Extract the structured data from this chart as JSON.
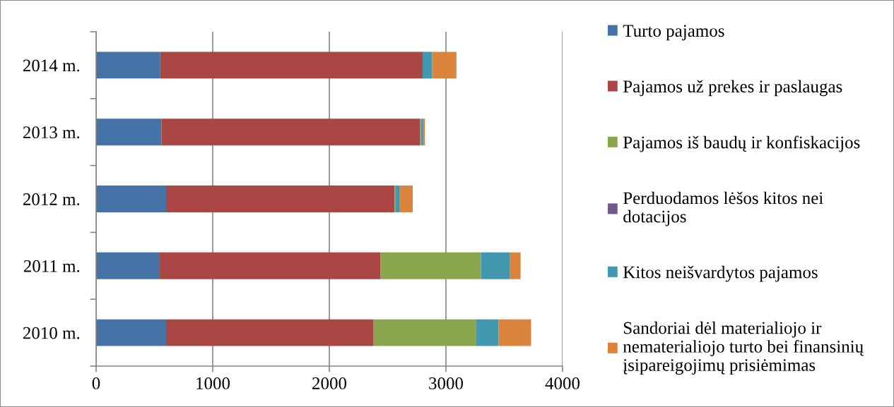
{
  "chart_data": {
    "type": "bar",
    "orientation": "horizontal",
    "stacked": true,
    "categories": [
      "2014 m.",
      "2013 m.",
      "2012 m.",
      "2011 m.",
      "2010 m."
    ],
    "series": [
      {
        "name": "Turto pajamos",
        "color": "#4572a7",
        "values": [
          550,
          560,
          600,
          540,
          600
        ]
      },
      {
        "name": "Pajamos už prekes ir paslaugas",
        "color": "#aa4643",
        "values": [
          2250,
          2220,
          1960,
          1900,
          1780
        ]
      },
      {
        "name": "Pajamos iš baudų ir konfiskacijos",
        "color": "#89a54e",
        "values": [
          0,
          5,
          10,
          860,
          880
        ]
      },
      {
        "name": "Perduodamos lėšos kitos nei\ndotacijos",
        "color": "#71588f",
        "values": [
          0,
          0,
          0,
          0,
          0
        ]
      },
      {
        "name": "Kitos neišvardytos pajamos",
        "color": "#4198af",
        "values": [
          80,
          20,
          30,
          250,
          190
        ]
      },
      {
        "name": "Sandoriai dėl materialiojo ir\nnematerialiojo turto bei finansinių\nįsipareigojimų prisiėmimas",
        "color": "#db843d",
        "values": [
          210,
          15,
          115,
          90,
          280
        ]
      }
    ],
    "xlim": [
      0,
      4000
    ],
    "xticks": [
      0,
      1000,
      2000,
      3000,
      4000
    ],
    "grid": "x",
    "legend": "right"
  }
}
